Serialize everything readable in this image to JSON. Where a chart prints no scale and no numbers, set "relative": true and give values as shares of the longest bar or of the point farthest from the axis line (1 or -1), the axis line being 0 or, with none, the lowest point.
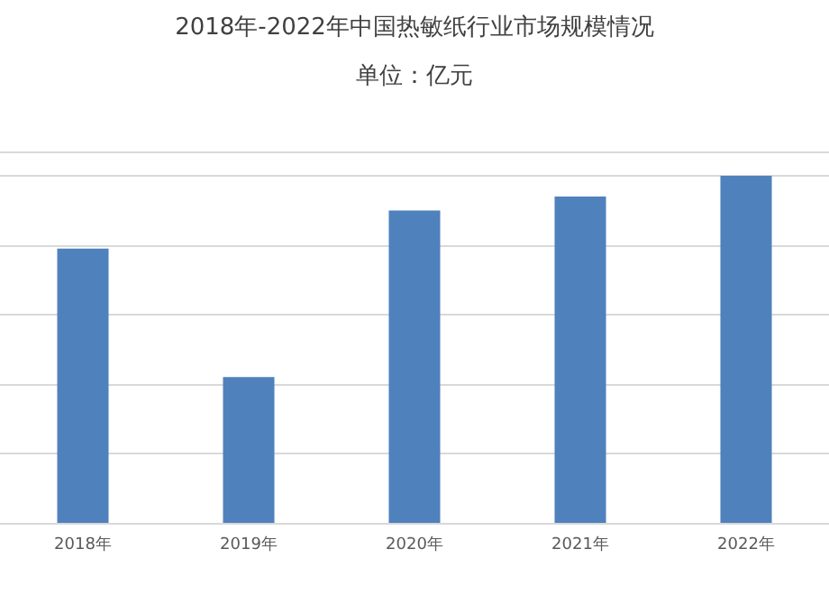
{
  "chart_data": {
    "type": "bar",
    "title": "2018年-2022年中国热敏纸行业市场规模情况",
    "subtitle": "单位：亿元",
    "categories": [
      "2018年",
      "2019年",
      "2020年",
      "2021年",
      "2022年"
    ],
    "values": [
      0.79,
      0.42,
      0.9,
      0.94,
      1
    ],
    "color": "#4f81bd",
    "relative": true,
    "grid": "y"
  }
}
